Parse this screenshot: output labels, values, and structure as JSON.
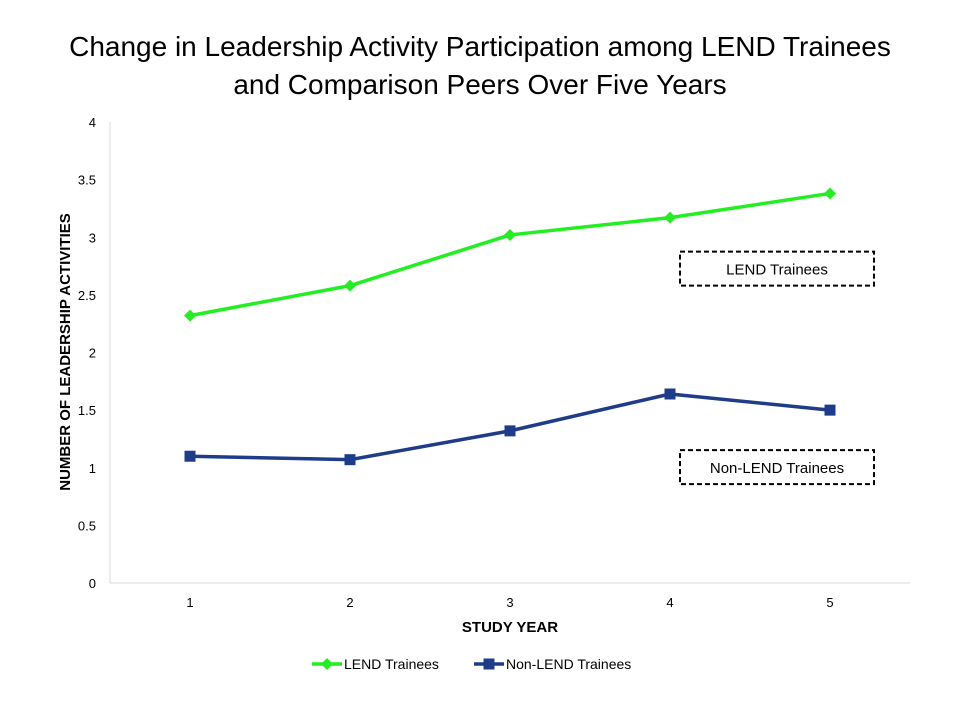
{
  "chart_data": {
    "type": "line",
    "title": "Change in Leadership Activity Participation among LEND Trainees and Comparison Peers Over Five Years",
    "xlabel": "STUDY YEAR",
    "ylabel": "NUMBER OF LEADERSHIP ACTIVITIES",
    "categories": [
      "1",
      "2",
      "3",
      "4",
      "5"
    ],
    "ylim": [
      0,
      4
    ],
    "yticks": [
      "0",
      "0.5",
      "1",
      "1.5",
      "2",
      "2.5",
      "3",
      "3.5",
      "4"
    ],
    "grid": false,
    "legend_position": "bottom",
    "series": [
      {
        "name": "LEND Trainees",
        "values": [
          2.32,
          2.58,
          3.02,
          3.17,
          3.38
        ],
        "color": "#22ee22",
        "marker": "diamond"
      },
      {
        "name": "Non-LEND Trainees",
        "values": [
          1.1,
          1.07,
          1.32,
          1.64,
          1.5
        ],
        "color": "#1f3c88",
        "marker": "square"
      }
    ],
    "annotations": [
      "LEND Trainees",
      "Non-LEND Trainees"
    ]
  }
}
